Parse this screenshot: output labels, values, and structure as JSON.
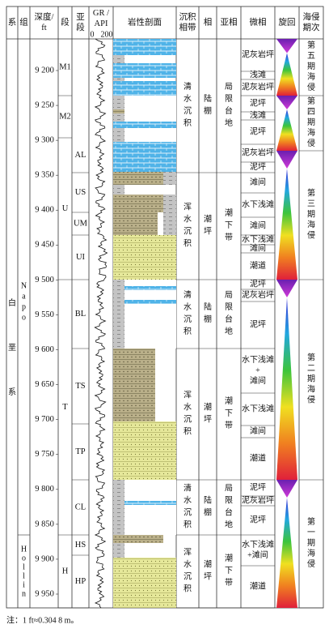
{
  "header": {
    "columns": [
      [
        "系"
      ],
      [
        "组"
      ],
      [
        "深度/",
        "ft"
      ],
      [
        "段"
      ],
      [
        "亚",
        "段"
      ],
      [
        "GR /",
        "API"
      ],
      [
        "岩性剖面"
      ],
      [
        "沉积",
        "相带"
      ],
      [
        "相"
      ],
      [
        "亚相"
      ],
      [
        "微相"
      ],
      [
        "旋回"
      ],
      [
        "海侵",
        "期次"
      ]
    ],
    "gr_scale": [
      "0",
      "200"
    ]
  },
  "system": "白垩系",
  "formations": [
    "Napo",
    "Hollin"
  ],
  "depth_ticks": [
    {
      "value": 9200,
      "label": "9 200"
    },
    {
      "value": 9250,
      "label": "9 250"
    },
    {
      "value": 9300,
      "label": "9 300"
    },
    {
      "value": 9350,
      "label": "9 350"
    },
    {
      "value": 9400,
      "label": "9 400"
    },
    {
      "value": 9450,
      "label": "9 450"
    },
    {
      "value": 9500,
      "label": "9 500"
    },
    {
      "value": 9550,
      "label": "9 550"
    },
    {
      "value": 9600,
      "label": "9 600"
    },
    {
      "value": 9650,
      "label": "9 650"
    },
    {
      "value": 9700,
      "label": "9 700"
    },
    {
      "value": 9750,
      "label": "9 750"
    },
    {
      "value": 9800,
      "label": "9 800"
    },
    {
      "value": 9850,
      "label": "9 850"
    },
    {
      "value": 9900,
      "label": "9 900"
    },
    {
      "value": 9950,
      "label": "9 950"
    }
  ],
  "members": [
    "M1",
    "M2",
    "U",
    "T",
    "H"
  ],
  "submembers": [
    "AL",
    "US",
    "UM",
    "UI",
    "BL",
    "TS",
    "TP",
    "CL",
    "HS",
    "HP"
  ],
  "facies_belts": [
    "清水沉积",
    "浑水沉积",
    "清水沉积",
    "浑水沉积",
    "清水沉积",
    "浑水沉积"
  ],
  "facies": [
    "陆棚",
    "潮坪",
    "陆棚",
    "潮坪",
    "陆棚",
    "潮坪"
  ],
  "subfacies": [
    "局限台地",
    "潮下带",
    "局限台地",
    "潮下带",
    "局限台地",
    "潮下带"
  ],
  "microfacies": [
    [
      "泥灰岩坪"
    ],
    [
      "浅滩"
    ],
    [
      "泥灰岩坪"
    ],
    [
      "泥坪"
    ],
    [
      "浅滩"
    ],
    [
      "泥坪"
    ],
    [
      "泥灰岩坪"
    ],
    [
      "泥坪"
    ],
    [
      "滩间"
    ],
    [
      "水下浅滩"
    ],
    [
      "滩间"
    ],
    [
      "水下浅滩"
    ],
    [
      "滩间"
    ],
    [
      "潮道"
    ],
    [
      "泥坪"
    ],
    [
      "泥灰岩坪"
    ],
    [
      "泥坪"
    ],
    [
      "水下浅滩",
      "+",
      "滩间"
    ],
    [
      "水下浅滩"
    ],
    [
      "滩间"
    ],
    [
      "潮道"
    ],
    [
      "泥坪"
    ],
    [
      "泥灰岩坪"
    ],
    [
      "泥坪"
    ],
    [
      "水下浅滩",
      "+滩间"
    ],
    [
      "潮道"
    ]
  ],
  "transgressions": [
    "第五期海侵",
    "第四期海侵",
    "第三期海侵",
    "第二期海侵",
    "第一期海侵"
  ],
  "note": "注：1 ft≈0.304 8 m。"
}
